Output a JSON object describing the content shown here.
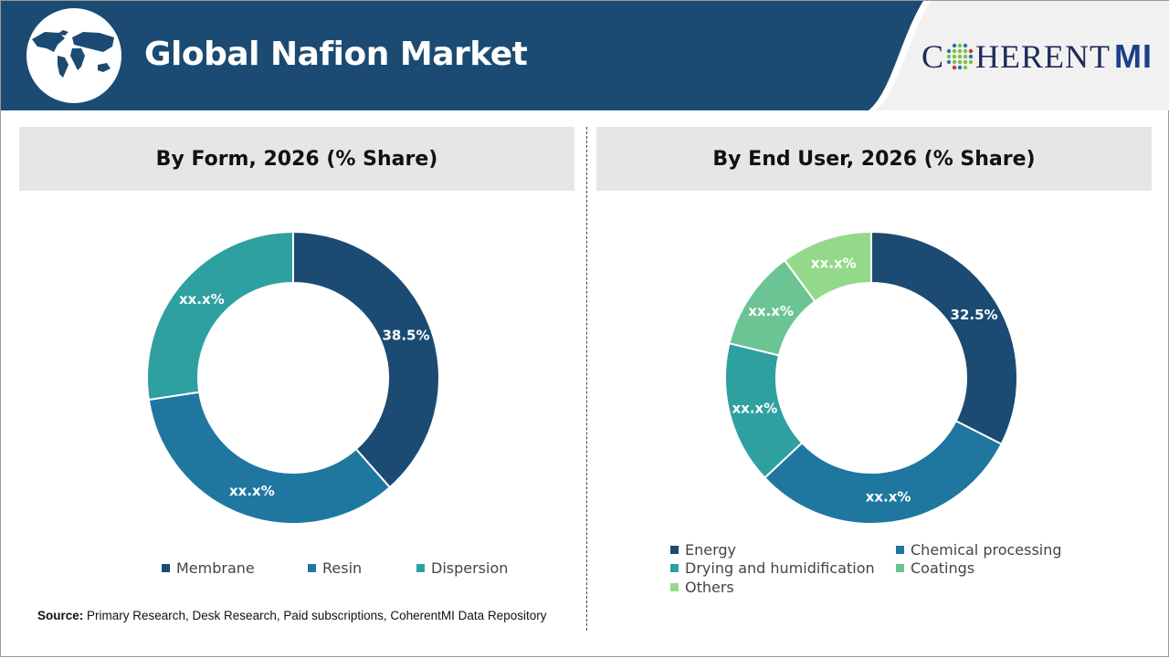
{
  "header": {
    "title": "Global Nafion Market",
    "logo_text": "COHERENTMI",
    "logo_main": "C",
    "logo_rest": "HERENT",
    "logo_mi": "MI"
  },
  "colors": {
    "header": "#1b4b72",
    "c1": "#1b4b72",
    "c2": "#1f77a0",
    "c3": "#2fa0a0",
    "c4": "#6cc494",
    "c5": "#94d98a"
  },
  "chart_data": [
    {
      "type": "pie",
      "donut": true,
      "title": "By Form, 2026 (% Share)",
      "categories": [
        "Membrane",
        "Resin",
        "Dispersion"
      ],
      "values": [
        38.5,
        34.1,
        27.4
      ],
      "labels": [
        "38.5%",
        "xx.x%",
        "xx.x%"
      ],
      "colors": [
        "#1b4b72",
        "#1f77a0",
        "#2fa0a0"
      ],
      "legend": "bottom"
    },
    {
      "type": "pie",
      "donut": true,
      "title": "By End User, 2026 (% Share)",
      "categories": [
        "Energy",
        "Chemical processing",
        "Drying and humidification",
        "Coatings",
        "Others"
      ],
      "values": [
        32.5,
        30.5,
        15.8,
        11.1,
        10.1
      ],
      "labels": [
        "32.5%",
        "xx.x%",
        "xx.x%",
        "xx.x%",
        "xx.x%"
      ],
      "colors": [
        "#1b4b72",
        "#1f77a0",
        "#2fa0a0",
        "#6cc494",
        "#94d98a"
      ],
      "legend": "bottom"
    }
  ],
  "source": {
    "label": "Source:",
    "text": " Primary Research, Desk Research, Paid subscriptions, CoherentMI Data Repository"
  }
}
